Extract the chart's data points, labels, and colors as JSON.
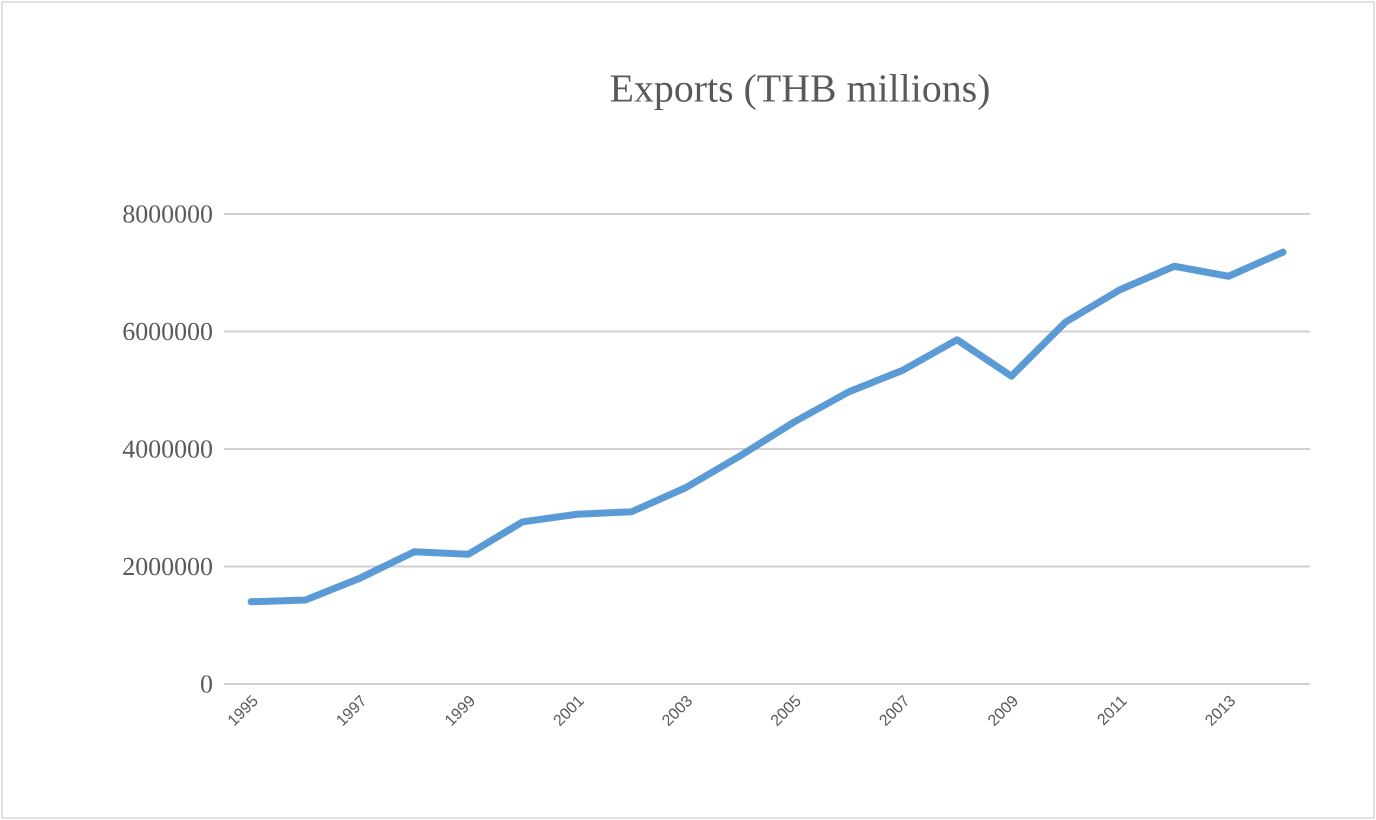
{
  "chart_data": {
    "type": "line",
    "title": "Exports (THB millions)",
    "categories": [
      "1995",
      null,
      "1997",
      null,
      "1999",
      null,
      "2001",
      null,
      "2003",
      null,
      "2005",
      null,
      "2007",
      null,
      "2009",
      null,
      "2011",
      null,
      "2013",
      null
    ],
    "series": [
      {
        "color": "#5b9bd5",
        "values": [
          1400000,
          1430000,
          1800000,
          2250000,
          2210000,
          2760000,
          2890000,
          2930000,
          3340000,
          3880000,
          4460000,
          4970000,
          5340000,
          5860000,
          5240000,
          6160000,
          6710000,
          7110000,
          6940000,
          7350000
        ]
      }
    ],
    "ylim": [
      0,
      8000000
    ],
    "yticks": [
      0,
      2000000,
      4000000,
      6000000,
      8000000
    ],
    "grid": "y",
    "marker": "none",
    "line_style": "solid"
  }
}
